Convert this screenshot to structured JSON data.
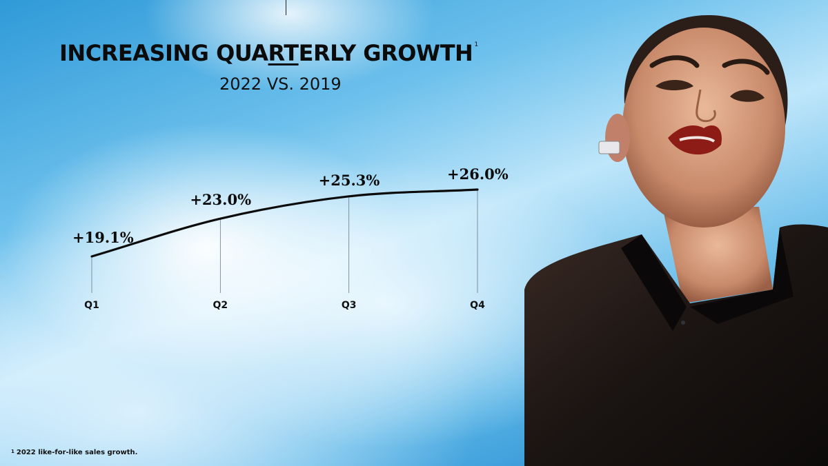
{
  "slide": {
    "title_pre": "INCREASING QUA",
    "title_underlined": "RT",
    "title_post": "ERLY GROWTH",
    "title_footnote_mark": "1",
    "subtitle": "2022 VS. 2019",
    "footnote_mark": "1",
    "footnote": "2022 like-for-like sales growth."
  },
  "chart_data": {
    "type": "line",
    "title": "INCREASING QUARTERLY GROWTH",
    "subtitle": "2022 VS. 2019",
    "categories": [
      "Q1",
      "Q2",
      "Q3",
      "Q4"
    ],
    "series": [
      {
        "values": [
          19.1,
          23.0,
          25.3,
          26.0
        ]
      }
    ],
    "data_labels": [
      "+19.1%",
      "+23.0%",
      "+25.3%",
      "+26.0%"
    ],
    "unit": "%",
    "xlabel": "",
    "ylabel": "",
    "grid": false,
    "legend": "none"
  },
  "colors": {
    "line": "#0b0b0b",
    "text": "#0b0b0b",
    "sky": "#2f9ad8"
  },
  "image": {
    "subject": "portrait of a woman with red lipstick, earring and black sheer shirt"
  }
}
